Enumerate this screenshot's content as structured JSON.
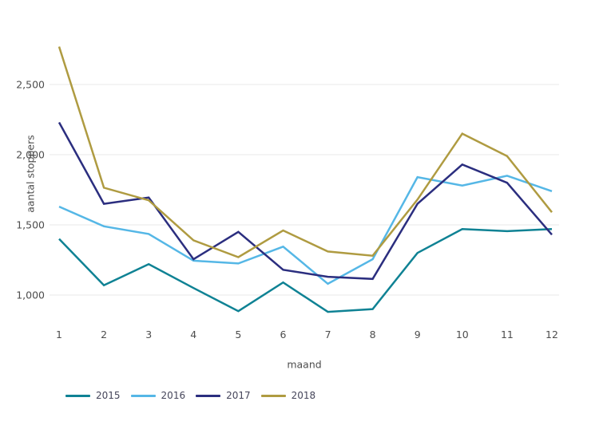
{
  "chart_data": {
    "type": "line",
    "title": "",
    "xlabel": "maand",
    "ylabel": "aantal stoppers",
    "x": [
      1,
      2,
      3,
      4,
      5,
      6,
      7,
      8,
      9,
      10,
      11,
      12
    ],
    "series": [
      {
        "name": "2015",
        "color": "#0f8294",
        "values": [
          1400,
          1070,
          1220,
          1050,
          885,
          1090,
          880,
          900,
          1300,
          1470,
          1455,
          1470
        ]
      },
      {
        "name": "2016",
        "color": "#55b7e6",
        "values": [
          1630,
          1490,
          1435,
          1245,
          1225,
          1345,
          1080,
          1255,
          1840,
          1780,
          1850,
          1740
        ]
      },
      {
        "name": "2017",
        "color": "#2b2e7f",
        "values": [
          2230,
          1650,
          1695,
          1255,
          1450,
          1180,
          1130,
          1115,
          1650,
          1930,
          1800,
          1430
        ]
      },
      {
        "name": "2018",
        "color": "#af9b41",
        "values": [
          2770,
          1765,
          1675,
          1390,
          1270,
          1460,
          1310,
          1280,
          1680,
          2150,
          1990,
          1590
        ]
      }
    ],
    "y_axis": {
      "ticks": [
        1000,
        1500,
        2000,
        2500
      ],
      "tick_labels": [
        "1,000",
        "1,500",
        "2,000",
        "2,500"
      ]
    },
    "ylim": [
      850,
      2850
    ],
    "grid": "horizontal-only",
    "legend_position": "bottom-left",
    "styles": {
      "gridline_color": "#e8e8e8",
      "text_color": "#4d4d4d",
      "legend_text_color": "#45455a",
      "background_color": "#ffffff"
    }
  }
}
